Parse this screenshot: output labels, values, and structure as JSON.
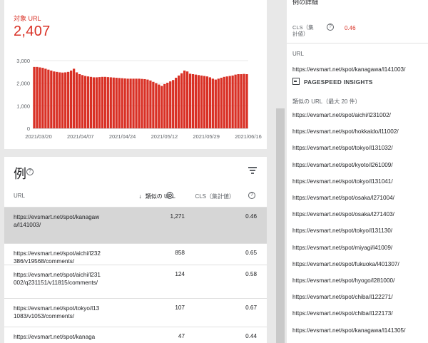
{
  "chart_card": {
    "metric_label": "対象 URL",
    "metric_value": "2,407"
  },
  "chart_data": {
    "type": "bar",
    "title": "",
    "xlabel": "",
    "ylabel": "",
    "ylim": [
      0,
      3000
    ],
    "yticks": [
      "0",
      "1,000",
      "2,000",
      "3,000"
    ],
    "xticks": [
      "2021/03/20",
      "2021/04/07",
      "2021/04/24",
      "2021/05/12",
      "2021/05/29",
      "2021/06/16"
    ],
    "color": "#d93025",
    "grid": true,
    "values": [
      2720,
      2720,
      2700,
      2680,
      2640,
      2600,
      2560,
      2520,
      2500,
      2480,
      2470,
      2480,
      2500,
      2560,
      2640,
      2480,
      2400,
      2360,
      2320,
      2300,
      2280,
      2260,
      2260,
      2270,
      2280,
      2280,
      2270,
      2260,
      2250,
      2240,
      2230,
      2220,
      2210,
      2200,
      2200,
      2200,
      2200,
      2200,
      2190,
      2180,
      2160,
      2120,
      2060,
      2000,
      1940,
      1880,
      1960,
      2020,
      2080,
      2140,
      2240,
      2340,
      2440,
      2560,
      2520,
      2420,
      2400,
      2380,
      2360,
      2340,
      2320,
      2300,
      2260,
      2200,
      2160,
      2200,
      2240,
      2280,
      2300,
      2320,
      2340,
      2380,
      2400,
      2400,
      2410,
      2400
    ]
  },
  "table": {
    "title": "例",
    "help_glyph": "?",
    "col_url": "URL",
    "col_count": "類似の URL",
    "col_cls": "CLS（集計値）",
    "rows": [
      {
        "url": "https://evsmart.net/spot/kanagawa/l141003/",
        "count": "1,271",
        "cls": "0.46",
        "selected": true
      },
      {
        "url": "https://evsmart.net/spot/aichi/l232386/v19568/comments/",
        "count": "858",
        "cls": "0.65",
        "selected": false
      },
      {
        "url": "https://evsmart.net/spot/aichi/l231002/q231151/v11815/comments/",
        "count": "124",
        "cls": "0.58",
        "selected": false
      },
      {
        "url": "https://evsmart.net/spot/tokyo/l131083/v1053/comments/",
        "count": "107",
        "cls": "0.67",
        "selected": false
      },
      {
        "url": "https://evsmart.net/spot/kanaga",
        "count": "47",
        "cls": "0.44",
        "selected": false
      }
    ]
  },
  "detail": {
    "heading": "例の詳細",
    "cls_label": "CLS（集計値）",
    "cls_value": "0.46",
    "url_label": "URL",
    "url": "https://evsmart.net/spot/kanagawa/l141003/",
    "psi_label": "PAGESPEED INSIGHTS",
    "similar_label": "類似の URL（最大 20 件）",
    "similar_urls": [
      "https://evsmart.net/spot/aichi/l231002/",
      "https://evsmart.net/spot/hokkaido/l11002/",
      "https://evsmart.net/spot/tokyo/l131032/",
      "https://evsmart.net/spot/kyoto/l261009/",
      "https://evsmart.net/spot/tokyo/l131041/",
      "https://evsmart.net/spot/osaka/l271004/",
      "https://evsmart.net/spot/osaka/l271403/",
      "https://evsmart.net/spot/tokyo/l131130/",
      "https://evsmart.net/spot/miyagi/l41009/",
      "https://evsmart.net/spot/fukuoka/l401307/",
      "https://evsmart.net/spot/hyogo/l281000/",
      "https://evsmart.net/spot/chiba/l122271/",
      "https://evsmart.net/spot/chiba/l122173/",
      "https://evsmart.net/spot/kanagawa/l141305/"
    ]
  }
}
